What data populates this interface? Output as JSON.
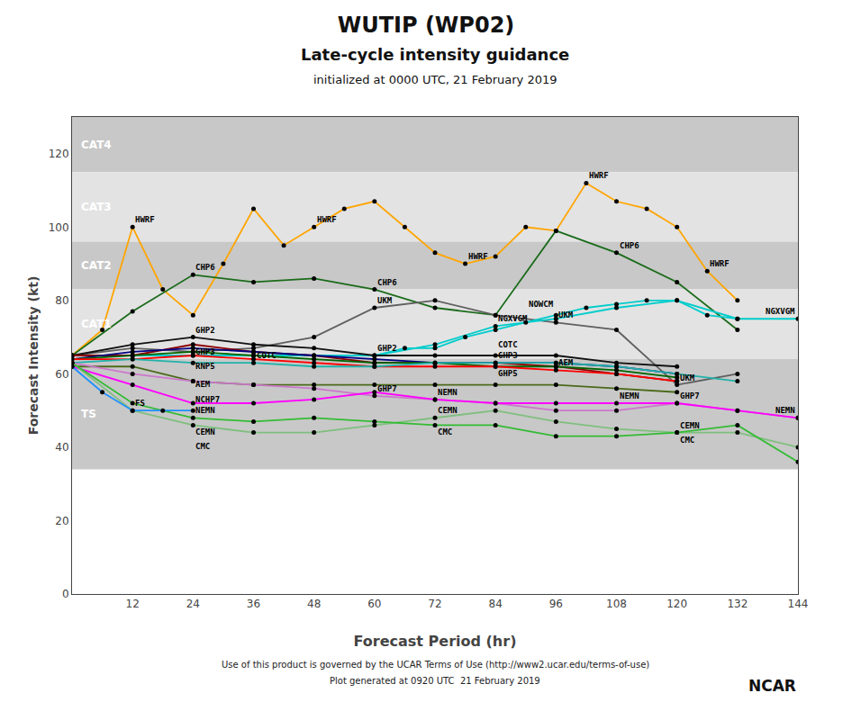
{
  "chart_data": {
    "type": "line",
    "title": "WUTIP (WP02)",
    "subtitle": [
      "Late-cycle intensity guidance",
      "initialized at 0000 UTC, 21 February 2019"
    ],
    "xlabel": "Forecast Period (hr)",
    "ylabel": "Forecast Intensity (kt)",
    "annotations": [
      "Use of this product is governed by the UCAR Terms of Use (http://www2.ucar.edu/terms-of-use)",
      "Plot generated at 0920 UTC  21 February 2019",
      "NCAR"
    ],
    "xlim": [
      0,
      144
    ],
    "ylim": [
      0,
      130
    ],
    "xticks": [
      12,
      24,
      36,
      48,
      60,
      72,
      84,
      96,
      108,
      120,
      132,
      144
    ],
    "yticks": [
      0,
      20,
      40,
      60,
      80,
      100,
      120
    ],
    "grid": false,
    "marker": "circle",
    "bands": [
      {
        "label": "CAT4",
        "ymin": 115,
        "ymax": 130,
        "color": "#c8c8c8"
      },
      {
        "label": "CAT3",
        "ymin": 96,
        "ymax": 115,
        "color": "#e3e3e3"
      },
      {
        "label": "CAT2",
        "ymin": 83,
        "ymax": 96,
        "color": "#c8c8c8"
      },
      {
        "label": "CAT1",
        "ymin": 64,
        "ymax": 83,
        "color": "#e3e3e3"
      },
      {
        "label": "TS",
        "ymin": 34,
        "ymax": 64,
        "color": "#c8c8c8"
      }
    ],
    "series": [
      {
        "name": "HWRF",
        "color": "#FFA500",
        "x": [
          0,
          6,
          12,
          18,
          24,
          30,
          36,
          42,
          48,
          54,
          60,
          66,
          72,
          78,
          84,
          90,
          96,
          102,
          108,
          114,
          120,
          126,
          132
        ],
        "values": [
          65,
          72,
          100,
          83,
          76,
          90,
          105,
          95,
          100,
          105,
          107,
          100,
          93,
          90,
          92,
          100,
          99,
          112,
          107,
          105,
          100,
          88,
          80
        ],
        "labelled_points": [
          2,
          8,
          13,
          17,
          21
        ]
      },
      {
        "name": "CHP6",
        "color": "#1a6b1a",
        "x": [
          0,
          12,
          24,
          36,
          48,
          60,
          72,
          84,
          96,
          108,
          120,
          132
        ],
        "values": [
          65,
          77,
          87,
          85,
          86,
          83,
          78,
          76,
          99,
          93,
          85,
          72
        ],
        "labelled_points": [
          2,
          5,
          9
        ]
      },
      {
        "name": "UKM",
        "color": "#606060",
        "x": [
          0,
          12,
          24,
          36,
          48,
          60,
          72,
          84,
          96,
          108,
          120,
          132
        ],
        "values": [
          65,
          67,
          66,
          67,
          70,
          78,
          80,
          76,
          74,
          72,
          57,
          60
        ],
        "labelled_points": [
          5,
          8,
          10
        ]
      },
      {
        "name": "NGXVGM",
        "color": "#00CCCC",
        "x": [
          0,
          12,
          24,
          36,
          48,
          60,
          72,
          84,
          96,
          108,
          120,
          132,
          144
        ],
        "values": [
          65,
          65,
          65,
          65,
          65,
          65,
          68,
          73,
          75,
          78,
          80,
          75,
          75
        ],
        "labelled_points": [
          7,
          12
        ]
      },
      {
        "name": "NOWCM",
        "color": "#00CCCC",
        "x": [
          60,
          66,
          72,
          78,
          84,
          90,
          96,
          102,
          108,
          114,
          120,
          126,
          132
        ],
        "values": [
          65,
          67,
          67,
          70,
          72,
          74,
          76,
          78,
          79,
          80,
          80,
          76,
          75
        ],
        "labelled_points": [
          5
        ]
      },
      {
        "name": "GHP2",
        "color": "#111111",
        "x": [
          0,
          12,
          24,
          36,
          48,
          60,
          72,
          84,
          96,
          108,
          120
        ],
        "values": [
          65,
          68,
          70,
          68,
          67,
          65,
          65,
          65,
          65,
          63,
          62
        ],
        "labelled_points": [
          2,
          5
        ]
      },
      {
        "name": "GHP3",
        "color": "#8B0000",
        "x": [
          0,
          12,
          24,
          36,
          48,
          60,
          72,
          84,
          96,
          108,
          120
        ],
        "values": [
          65,
          65,
          68,
          66,
          65,
          63,
          63,
          63,
          62,
          60,
          58
        ],
        "labelled_points": [
          2,
          7
        ]
      },
      {
        "name": "RNP5",
        "color": "#000080",
        "x": [
          0,
          12,
          24,
          36,
          48,
          60,
          72,
          84,
          96,
          108,
          120
        ],
        "values": [
          64,
          66,
          67,
          66,
          65,
          64,
          63,
          63,
          63,
          62,
          60
        ],
        "labelled_points": [
          2
        ]
      },
      {
        "name": "GHP5",
        "color": "#006400",
        "x": [
          0,
          12,
          24,
          36,
          48,
          60,
          72,
          84,
          96,
          108,
          120
        ],
        "values": [
          64,
          65,
          66,
          65,
          64,
          63,
          63,
          62,
          62,
          61,
          59
        ],
        "labelled_points": [
          7
        ]
      },
      {
        "name": "AEM",
        "color": "#FF0000",
        "x": [
          0,
          12,
          24,
          36,
          48,
          60,
          72,
          84,
          96,
          108,
          120
        ],
        "values": [
          64,
          64,
          65,
          64,
          63,
          62,
          62,
          62,
          61,
          60,
          58
        ],
        "labelled_points": [
          2,
          8
        ]
      },
      {
        "name": "COTC",
        "color": "#20B2AA",
        "x": [
          0,
          12,
          24,
          36,
          48,
          60,
          72,
          84,
          96,
          108,
          120,
          132
        ],
        "values": [
          63,
          64,
          63,
          63,
          62,
          62,
          63,
          63,
          63,
          62,
          60,
          58
        ],
        "labelled_points": [
          3,
          7
        ]
      },
      {
        "name": "NCHP7",
        "color": "#4B6A1A",
        "x": [
          0,
          12,
          24,
          36,
          48,
          60,
          72,
          84,
          96,
          108,
          120
        ],
        "values": [
          62,
          62,
          58,
          57,
          57,
          57,
          57,
          57,
          57,
          56,
          55
        ],
        "labelled_points": [
          2
        ]
      },
      {
        "name": "GHP7",
        "color": "#CC77CC",
        "x": [
          0,
          12,
          24,
          36,
          48,
          60,
          72,
          84,
          96,
          108,
          120,
          132,
          144
        ],
        "values": [
          63,
          60,
          58,
          57,
          56,
          54,
          53,
          52,
          50,
          50,
          52,
          50,
          48
        ],
        "labelled_points": [
          5,
          10
        ]
      },
      {
        "name": "NEMN",
        "color": "#FF00FF",
        "x": [
          0,
          12,
          24,
          36,
          48,
          60,
          72,
          84,
          96,
          108,
          120,
          132,
          144
        ],
        "values": [
          62,
          57,
          52,
          52,
          53,
          55,
          53,
          52,
          52,
          52,
          52,
          50,
          48
        ],
        "labelled_points": [
          2,
          6,
          9,
          12
        ]
      },
      {
        "name": "CEMN",
        "color": "#7FBF7F",
        "x": [
          0,
          12,
          24,
          36,
          48,
          60,
          72,
          84,
          96,
          108,
          120,
          132,
          144
        ],
        "values": [
          63,
          50,
          46,
          44,
          44,
          46,
          48,
          50,
          47,
          45,
          44,
          44,
          40
        ],
        "labelled_points": [
          2,
          6,
          10
        ]
      },
      {
        "name": "CMC",
        "color": "#33BB33",
        "x": [
          0,
          12,
          24,
          36,
          48,
          60,
          72,
          84,
          96,
          108,
          120,
          132,
          144
        ],
        "values": [
          63,
          52,
          48,
          47,
          48,
          47,
          46,
          46,
          43,
          43,
          44,
          46,
          36
        ],
        "labelled_points": [
          2,
          6,
          10
        ]
      },
      {
        "name": "FS",
        "color": "#1E90FF",
        "x": [
          0,
          6,
          12,
          18,
          24
        ],
        "values": [
          62,
          55,
          50,
          50,
          50
        ],
        "labelled_points": [
          2
        ]
      }
    ]
  }
}
